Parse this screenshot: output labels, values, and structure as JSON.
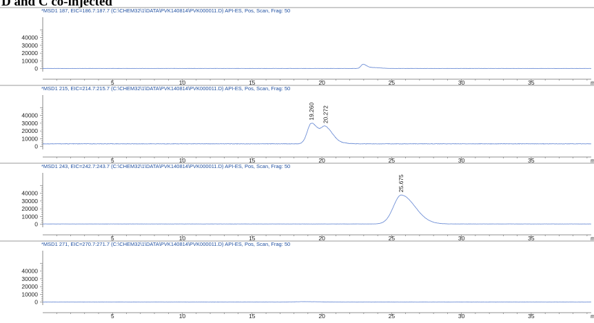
{
  "title": "D and C co-injected",
  "trace_color": "#6f8fd6",
  "header_color": "#1f4fa0",
  "chart_data": [
    {
      "type": "line",
      "header": "*MSD1 187, EIC=186.7:187.7 (C:\\CHEM32\\1\\DATA\\PVK140814\\PVK000011.D)   API-ES, Pos, Scan, Frag: 50",
      "x_unit_label": "m",
      "x_ticks": [
        5,
        10,
        15,
        20,
        25,
        30,
        35
      ],
      "y_ticks": [
        0,
        10000,
        20000,
        30000,
        40000
      ],
      "xlim": [
        0,
        39.3
      ],
      "ylim": [
        -2000,
        52000
      ],
      "baseline": 300,
      "peaks": [
        {
          "rt": 22.95,
          "height": 5200,
          "width": 0.15
        },
        {
          "rt": 23.6,
          "height": 1200,
          "width": 0.35
        }
      ],
      "peak_labels": []
    },
    {
      "type": "line",
      "header": "*MSD1 215, EIC=214.7:215.7 (C:\\CHEM32\\1\\DATA\\PVK140814\\PVK000011.D)   API-ES, Pos, Scan, Frag: 50",
      "x_unit_label": "m",
      "x_ticks": [
        5,
        10,
        15,
        20,
        25,
        30,
        35
      ],
      "y_ticks": [
        0,
        10000,
        20000,
        30000,
        40000
      ],
      "xlim": [
        0,
        39.3
      ],
      "ylim": [
        -2000,
        52000
      ],
      "baseline": 3500,
      "peaks": [
        {
          "rt": 19.26,
          "height": 26500,
          "width": 0.3
        },
        {
          "rt": 20.27,
          "height": 19500,
          "width": 0.3
        },
        {
          "rt": 21.0,
          "height": 1500,
          "width": 0.4
        }
      ],
      "peak_labels": [
        {
          "rt": 19.26,
          "text": "19.260"
        },
        {
          "rt": 20.27,
          "text": "20.272"
        }
      ]
    },
    {
      "type": "line",
      "header": "*MSD1 243, EIC=242.7:243.7 (C:\\CHEM32\\1\\DATA\\PVK140814\\PVK000011.D)   API-ES, Pos, Scan, Frag: 50",
      "x_unit_label": "m",
      "x_ticks": [
        5,
        10,
        15,
        20,
        25,
        30,
        35
      ],
      "y_ticks": [
        0,
        10000,
        20000,
        30000,
        40000
      ],
      "xlim": [
        0,
        39.3
      ],
      "ylim": [
        -2000,
        52000
      ],
      "baseline": 500,
      "peaks": [
        {
          "rt": 25.68,
          "height": 37000,
          "width": 0.55
        },
        {
          "rt": 26.9,
          "height": 3000,
          "width": 0.5
        }
      ],
      "peak_labels": [
        {
          "rt": 25.675,
          "text": "25.675"
        }
      ]
    },
    {
      "type": "line",
      "header": "*MSD1 271, EIC=270.7:271.7 (C:\\CHEM32\\1\\DATA\\PVK140814\\PVK000011.D)   API-ES, Pos, Scan, Frag: 50",
      "x_unit_label": "m",
      "x_ticks": [
        5,
        10,
        15,
        20,
        25,
        30,
        35
      ],
      "y_ticks": [
        0,
        10000,
        20000,
        30000,
        40000
      ],
      "xlim": [
        0,
        39.3
      ],
      "ylim": [
        -2000,
        52000
      ],
      "baseline": 150,
      "peaks": [
        {
          "rt": 18.7,
          "height": 500,
          "width": 0.6
        }
      ],
      "peak_labels": []
    }
  ]
}
